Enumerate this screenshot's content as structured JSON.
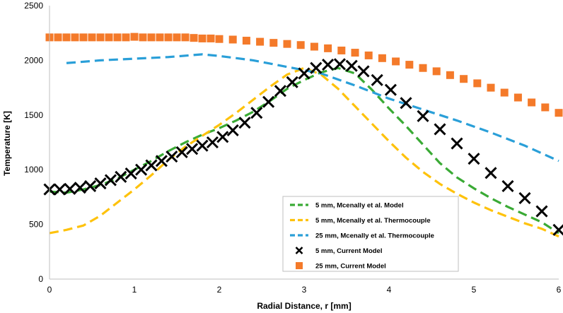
{
  "chart_data": {
    "type": "line",
    "title": "",
    "xlabel": "Radial Distance, r [mm]",
    "ylabel": "Temperature [K]",
    "xlim": [
      0,
      6
    ],
    "ylim": [
      0,
      2500
    ],
    "x_ticks": [
      0,
      1,
      2,
      3,
      4,
      5,
      6
    ],
    "y_ticks": [
      0,
      500,
      1000,
      1500,
      2000,
      2500
    ],
    "grid": false,
    "legend_position": "bottom-right",
    "colors": {
      "green": "#3aaa35",
      "yellow": "#fec20c",
      "blue": "#2a9fd8",
      "black": "#000000",
      "orange": "#f47a2a",
      "axis": "#bfbfbf"
    },
    "series": [
      {
        "name": "5 mm, Mcenally et al. Model",
        "style": "dashed-line",
        "color": "#3aaa35",
        "x": [
          0.0,
          0.2,
          0.4,
          0.6,
          0.8,
          1.0,
          1.2,
          1.4,
          1.6,
          1.8,
          2.0,
          2.2,
          2.4,
          2.6,
          2.8,
          3.0,
          3.2,
          3.4,
          3.6,
          3.8,
          4.0,
          4.2,
          4.4,
          4.6,
          4.8,
          5.0,
          5.2,
          5.4,
          5.6,
          5.8,
          6.0
        ],
        "values": [
          800,
          790,
          820,
          860,
          920,
          1000,
          1080,
          1170,
          1250,
          1320,
          1380,
          1450,
          1530,
          1630,
          1740,
          1820,
          1890,
          1930,
          1880,
          1730,
          1560,
          1400,
          1230,
          1060,
          930,
          830,
          740,
          660,
          590,
          520,
          420
        ]
      },
      {
        "name": "5 mm, Mcenally et al. Thermocouple",
        "style": "dashed-line",
        "color": "#fec20c",
        "x": [
          0.0,
          0.2,
          0.4,
          0.6,
          0.8,
          1.0,
          1.2,
          1.4,
          1.6,
          1.8,
          2.0,
          2.2,
          2.4,
          2.6,
          2.8,
          3.0,
          3.2,
          3.4,
          3.6,
          3.8,
          4.0,
          4.2,
          4.4,
          4.6,
          4.8,
          5.0,
          5.2,
          5.4,
          5.6,
          5.8,
          6.0
        ],
        "values": [
          420,
          450,
          490,
          580,
          700,
          820,
          950,
          1090,
          1210,
          1310,
          1410,
          1520,
          1640,
          1760,
          1870,
          1930,
          1870,
          1740,
          1580,
          1420,
          1260,
          1110,
          980,
          870,
          780,
          700,
          630,
          570,
          510,
          460,
          390
        ]
      },
      {
        "name": "25 mm, Mcenally et al. Thermocouple",
        "style": "dashed-line",
        "color": "#2a9fd8",
        "x": [
          0.2,
          0.6,
          1.0,
          1.4,
          1.8,
          2.0,
          2.4,
          2.8,
          3.2,
          3.6,
          4.0,
          4.4,
          4.8,
          5.2,
          5.6,
          6.0
        ],
        "values": [
          1975,
          2000,
          2015,
          2030,
          2055,
          2040,
          2000,
          1940,
          1880,
          1770,
          1650,
          1550,
          1450,
          1340,
          1220,
          1080
        ]
      },
      {
        "name": "5 mm, Current Model",
        "style": "x-markers",
        "color": "#000000",
        "x": [
          0.0,
          0.12,
          0.24,
          0.36,
          0.48,
          0.6,
          0.72,
          0.84,
          0.96,
          1.08,
          1.2,
          1.32,
          1.44,
          1.56,
          1.68,
          1.8,
          1.92,
          2.04,
          2.16,
          2.3,
          2.44,
          2.58,
          2.72,
          2.86,
          3.0,
          3.14,
          3.28,
          3.42,
          3.56,
          3.7,
          3.86,
          4.02,
          4.2,
          4.4,
          4.6,
          4.8,
          5.0,
          5.2,
          5.4,
          5.6,
          5.8,
          6.0
        ],
        "values": [
          820,
          820,
          825,
          835,
          850,
          875,
          905,
          935,
          965,
          1000,
          1040,
          1080,
          1120,
          1160,
          1190,
          1220,
          1250,
          1300,
          1360,
          1430,
          1520,
          1620,
          1720,
          1800,
          1880,
          1930,
          1960,
          1965,
          1950,
          1900,
          1820,
          1730,
          1610,
          1490,
          1370,
          1240,
          1100,
          970,
          850,
          740,
          620,
          450
        ]
      },
      {
        "name": "25 mm, Current Model",
        "style": "square-markers",
        "color": "#f47a2a",
        "x": [
          0.0,
          0.1,
          0.2,
          0.3,
          0.4,
          0.5,
          0.6,
          0.7,
          0.8,
          0.9,
          1.0,
          1.1,
          1.2,
          1.3,
          1.4,
          1.5,
          1.6,
          1.7,
          1.8,
          1.9,
          2.0,
          2.16,
          2.32,
          2.48,
          2.64,
          2.8,
          2.96,
          3.12,
          3.28,
          3.44,
          3.6,
          3.76,
          3.92,
          4.08,
          4.24,
          4.4,
          4.56,
          4.72,
          4.88,
          5.04,
          5.2,
          5.36,
          5.52,
          5.68,
          5.84,
          6.0
        ],
        "values": [
          2210,
          2210,
          2210,
          2210,
          2210,
          2210,
          2210,
          2210,
          2210,
          2210,
          2215,
          2210,
          2210,
          2210,
          2210,
          2210,
          2210,
          2205,
          2200,
          2200,
          2195,
          2190,
          2180,
          2170,
          2160,
          2150,
          2140,
          2125,
          2110,
          2090,
          2070,
          2045,
          2020,
          1990,
          1960,
          1930,
          1900,
          1865,
          1830,
          1790,
          1750,
          1705,
          1660,
          1615,
          1570,
          1520
        ]
      }
    ]
  }
}
